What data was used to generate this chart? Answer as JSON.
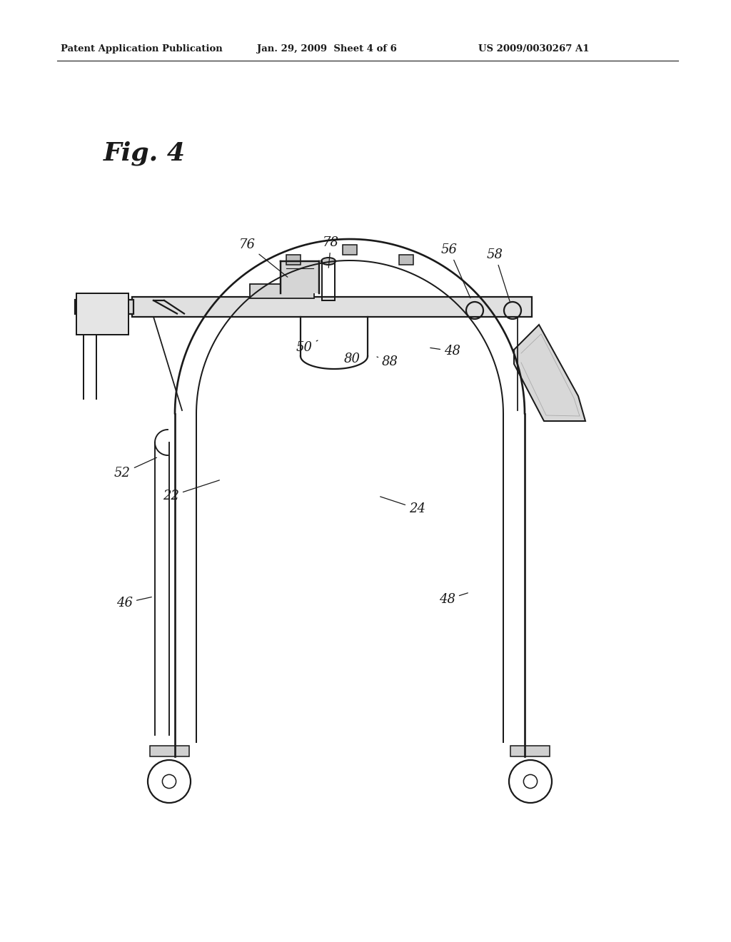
{
  "background": "#ffffff",
  "lc": "#1a1a1a",
  "lf": "#e8e8e8",
  "lm": "#cccccc",
  "header_left": "Patent Application Publication",
  "header_mid": "Jan. 29, 2009  Sheet 4 of 6",
  "header_right": "US 2009/0030267 A1",
  "fig_label": "Fig. 4",
  "lw": 1.6
}
